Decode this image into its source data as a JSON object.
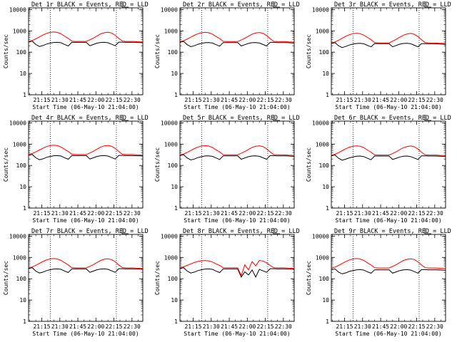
{
  "chart_data": {
    "type": "line",
    "xlabel": "Start Time (06-May-10 21:04:00)",
    "ylabel": "Counts/sec",
    "x_tick_labels": [
      "21:15",
      "21:30",
      "21:45",
      "22:00",
      "22:15",
      "22:30"
    ],
    "x_tick_minutes": [
      11,
      26,
      41,
      56,
      71,
      86
    ],
    "x_range_minutes": [
      0,
      95
    ],
    "y_tick_labels": [
      "1",
      "10",
      "100",
      "1000",
      "10000"
    ],
    "y_scale": "log",
    "ylim": [
      1,
      12000
    ],
    "vlines_minutes": [
      18,
      73
    ],
    "colors": {
      "events": "#000000",
      "lld": "#ff0000"
    },
    "series_x_minutes": [
      0,
      3,
      6,
      9,
      12,
      15,
      18,
      21,
      24,
      27,
      30,
      33,
      36,
      39,
      42,
      45,
      48,
      51,
      54,
      57,
      60,
      63,
      66,
      69,
      72,
      75,
      78,
      81,
      84,
      87,
      90,
      93,
      95
    ],
    "panels": [
      {
        "title": "Det 1r BLACK = Events, RED = LLD",
        "series": [
          {
            "name": "Events",
            "values": [
              300,
              330,
              230,
              185,
              205,
              240,
              265,
              285,
              290,
              275,
              230,
              195,
              290,
              290,
              290,
              290,
              290,
              200,
              230,
              265,
              285,
              290,
              275,
              235,
              200,
              295,
              295,
              290,
              290,
              290,
              285,
              280,
              275
            ]
          },
          {
            "name": "LLD",
            "values": [
              320,
              350,
              420,
              520,
              640,
              760,
              850,
              880,
              840,
              720,
              560,
              440,
              330,
              320,
              320,
              320,
              320,
              380,
              460,
              580,
              720,
              820,
              860,
              790,
              620,
              440,
              330,
              320,
              320,
              320,
              310,
              305,
              300
            ]
          }
        ]
      },
      {
        "title": "Det 2r BLACK = Events, RED = LLD",
        "series": [
          {
            "name": "Events",
            "values": [
              290,
              320,
              225,
              180,
              200,
              235,
              258,
              278,
              282,
              268,
              225,
              190,
              282,
              282,
              282,
              282,
              282,
              195,
              225,
              258,
              278,
              282,
              268,
              230,
              195,
              288,
              288,
              282,
              282,
              282,
              278,
              272,
              268
            ]
          },
          {
            "name": "LLD",
            "values": [
              315,
              345,
              410,
              505,
              620,
              735,
              820,
              850,
              815,
              700,
              545,
              430,
              322,
              315,
              315,
              315,
              315,
              372,
              450,
              565,
              700,
              795,
              835,
              770,
              605,
              430,
              322,
              315,
              315,
              315,
              305,
              300,
              295
            ]
          }
        ]
      },
      {
        "title": "Det 3r BLACK = Events, RED = LLD",
        "series": [
          {
            "name": "Events",
            "values": [
              250,
              280,
              200,
              165,
              185,
              215,
              238,
              256,
              262,
              248,
              208,
              178,
              250,
              250,
              250,
              250,
              250,
              178,
              206,
              238,
              256,
              262,
              248,
              210,
              178,
              250,
              250,
              248,
              246,
              244,
              240,
              236,
              232
            ]
          },
          {
            "name": "LLD",
            "values": [
              270,
              300,
              360,
              450,
              555,
              660,
              740,
              770,
              735,
              630,
              490,
              385,
              280,
              272,
              272,
              272,
              272,
              330,
              400,
              505,
              630,
              715,
              755,
              690,
              540,
              385,
              280,
              272,
              270,
              268,
              262,
              258,
              255
            ]
          }
        ]
      },
      {
        "title": "Det 4r BLACK = Events, RED = LLD",
        "series": [
          {
            "name": "Events",
            "values": [
              300,
              330,
              230,
              185,
              205,
              240,
              265,
              285,
              290,
              275,
              230,
              195,
              290,
              290,
              290,
              290,
              290,
              200,
              230,
              265,
              285,
              290,
              275,
              235,
              200,
              295,
              295,
              290,
              290,
              290,
              285,
              280,
              275
            ]
          },
          {
            "name": "LLD",
            "values": [
              330,
              360,
              430,
              530,
              650,
              770,
              860,
              890,
              850,
              730,
              570,
              450,
              335,
              325,
              325,
              325,
              325,
              385,
              465,
              585,
              730,
              830,
              870,
              800,
              630,
              450,
              335,
              325,
              325,
              325,
              315,
              310,
              305
            ]
          }
        ]
      },
      {
        "title": "Det 5r BLACK = Events, RED = LLD",
        "series": [
          {
            "name": "Events",
            "values": [
              290,
              320,
              225,
              180,
              200,
              235,
              258,
              278,
              282,
              268,
              225,
              190,
              282,
              282,
              282,
              282,
              282,
              195,
              225,
              258,
              278,
              282,
              268,
              230,
              195,
              288,
              288,
              282,
              282,
              282,
              278,
              272,
              268
            ]
          },
          {
            "name": "LLD",
            "values": [
              315,
              345,
              410,
              505,
              620,
              735,
              820,
              850,
              815,
              700,
              545,
              430,
              322,
              315,
              315,
              315,
              315,
              372,
              450,
              565,
              700,
              795,
              835,
              770,
              605,
              430,
              322,
              315,
              315,
              315,
              305,
              300,
              295
            ]
          }
        ]
      },
      {
        "title": "Det 6r BLACK = Events, RED = LLD",
        "series": [
          {
            "name": "Events",
            "values": [
              280,
              310,
              218,
              176,
              196,
              228,
              250,
              270,
              275,
              260,
              218,
              185,
              275,
              275,
              275,
              275,
              275,
              190,
              218,
              250,
              270,
              275,
              260,
              222,
              190,
              280,
              280,
              275,
              275,
              275,
              270,
              265,
              260
            ]
          },
          {
            "name": "LLD",
            "values": [
              305,
              335,
              400,
              492,
              605,
              718,
              800,
              830,
              795,
              683,
              532,
              420,
              315,
              308,
              308,
              308,
              308,
              363,
              440,
              552,
              683,
              776,
              815,
              750,
              590,
              420,
              315,
              308,
              308,
              308,
              298,
              293,
              288
            ]
          }
        ]
      },
      {
        "title": "Det 7r BLACK = Events, RED = LLD",
        "series": [
          {
            "name": "Events",
            "values": [
              300,
              330,
              230,
              185,
              205,
              240,
              265,
              285,
              290,
              275,
              230,
              195,
              290,
              290,
              290,
              290,
              290,
              200,
              230,
              265,
              285,
              290,
              275,
              235,
              200,
              295,
              295,
              290,
              290,
              290,
              285,
              280,
              275
            ]
          },
          {
            "name": "LLD",
            "values": [
              325,
              355,
              425,
              525,
              645,
              765,
              855,
              885,
              845,
              725,
              565,
              445,
              332,
              322,
              322,
              322,
              322,
              382,
              462,
              582,
              725,
              825,
              865,
              795,
              625,
              445,
              332,
              322,
              322,
              322,
              312,
              307,
              302
            ]
          }
        ]
      },
      {
        "title": "Det 8r BLACK = Events, RED = LLD",
        "series": [
          {
            "name": "Events",
            "values": [
              300,
              330,
              230,
              185,
              205,
              240,
              265,
              285,
              290,
              275,
              230,
              195,
              290,
              290,
              290,
              290,
              290,
              120,
              210,
              150,
              260,
              120,
              275,
              235,
              200,
              295,
              295,
              290,
              290,
              290,
              285,
              280,
              275
            ]
          },
          {
            "name": "LLD",
            "values": [
              330,
              360,
              420,
              500,
              580,
              650,
              700,
              710,
              690,
              610,
              500,
              420,
              330,
              325,
              325,
              325,
              325,
              140,
              450,
              260,
              640,
              400,
              720,
              680,
              560,
              420,
              330,
              325,
              325,
              325,
              315,
              310,
              305
            ]
          }
        ]
      },
      {
        "title": "Det 9r BLACK = Events, RED = LLD",
        "series": [
          {
            "name": "Events",
            "values": [
              260,
              290,
              205,
              168,
              188,
              220,
              243,
              262,
              267,
              253,
              212,
              180,
              262,
              262,
              262,
              262,
              262,
              182,
              210,
              243,
              262,
              267,
              253,
              215,
              182,
              268,
              268,
              262,
              262,
              262,
              258,
              253,
              248
            ]
          },
          {
            "name": "LLD",
            "values": [
              320,
              350,
              420,
              520,
              640,
              760,
              850,
              880,
              840,
              720,
              560,
              440,
              330,
              320,
              320,
              320,
              320,
              380,
              460,
              580,
              720,
              820,
              860,
              790,
              620,
              440,
              330,
              320,
              320,
              320,
              310,
              305,
              300
            ]
          }
        ]
      }
    ]
  }
}
